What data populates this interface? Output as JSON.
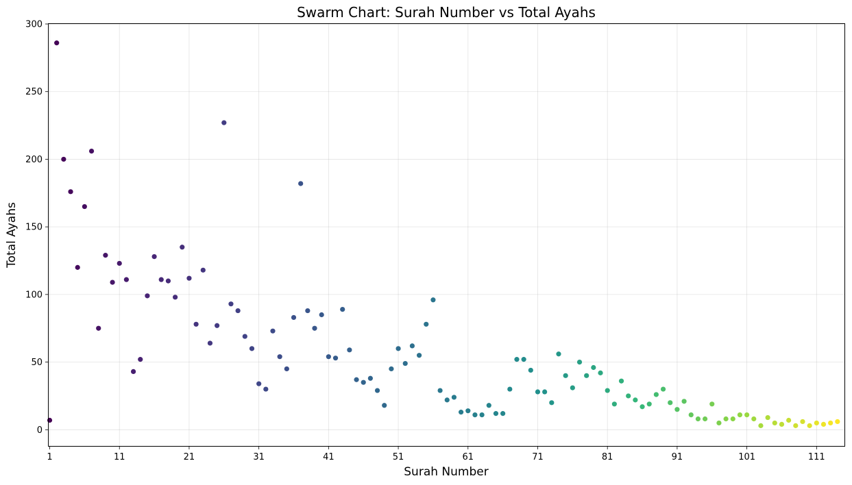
{
  "chart_data": {
    "type": "scatter",
    "title": "Swarm Chart: Surah Number vs Total Ayahs",
    "xlabel": "Surah Number",
    "ylabel": "Total Ayahs",
    "xlim": [
      0.85,
      115.0
    ],
    "ylim": [
      -12,
      300
    ],
    "xticks": [
      1,
      11,
      21,
      31,
      41,
      51,
      61,
      71,
      81,
      91,
      101,
      111
    ],
    "yticks": [
      0,
      50,
      100,
      150,
      200,
      250,
      300
    ],
    "grid": true,
    "colormap": "viridis",
    "series": [
      {
        "x": [
          1,
          2,
          3,
          4,
          5,
          6,
          7,
          8,
          9,
          10,
          11,
          12,
          13,
          14,
          15,
          16,
          17,
          18,
          19,
          20,
          21,
          22,
          23,
          24,
          25,
          26,
          27,
          28,
          29,
          30,
          31,
          32,
          33,
          34,
          35,
          36,
          37,
          38,
          39,
          40,
          41,
          42,
          43,
          44,
          45,
          46,
          47,
          48,
          49,
          50,
          51,
          52,
          53,
          54,
          55,
          56,
          57,
          58,
          59,
          60,
          61,
          62,
          63,
          64,
          65,
          66,
          67,
          68,
          69,
          70,
          71,
          72,
          73,
          74,
          75,
          76,
          77,
          78,
          79,
          80,
          81,
          82,
          83,
          84,
          85,
          86,
          87,
          88,
          89,
          90,
          91,
          92,
          93,
          94,
          95,
          96,
          97,
          98,
          99,
          100,
          101,
          102,
          103,
          104,
          105,
          106,
          107,
          108,
          109,
          110,
          111,
          112,
          113,
          114
        ],
        "y": [
          7,
          286,
          200,
          176,
          120,
          165,
          206,
          75,
          129,
          109,
          123,
          111,
          43,
          52,
          99,
          128,
          111,
          110,
          98,
          135,
          112,
          78,
          118,
          64,
          77,
          227,
          93,
          88,
          69,
          60,
          34,
          30,
          73,
          54,
          45,
          83,
          182,
          88,
          75,
          85,
          54,
          53,
          89,
          59,
          37,
          35,
          38,
          29,
          18,
          45,
          60,
          49,
          62,
          55,
          78,
          96,
          29,
          22,
          24,
          13,
          14,
          11,
          11,
          18,
          12,
          12,
          30,
          52,
          52,
          44,
          28,
          28,
          20,
          56,
          40,
          31,
          50,
          40,
          46,
          42,
          29,
          19,
          36,
          25,
          22,
          17,
          19,
          26,
          30,
          20,
          15,
          21,
          11,
          8,
          8,
          19,
          5,
          8,
          8,
          11,
          11,
          8,
          3,
          9,
          5,
          4,
          7,
          3,
          6,
          3,
          5,
          4,
          5,
          6
        ]
      }
    ]
  }
}
